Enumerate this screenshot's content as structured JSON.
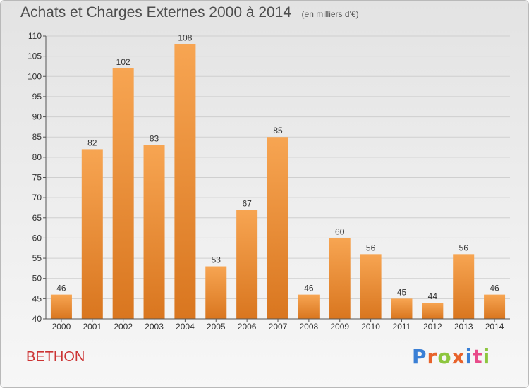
{
  "header": {
    "title": "Achats et Charges Externes 2000 à 2014",
    "subtitle": "(en milliers d'€)"
  },
  "footer": {
    "commune": "BETHON",
    "logo_text": "Proxiti",
    "logo_colors": [
      "#3a7fd5",
      "#e8632b",
      "#8dc63f",
      "#e8632b",
      "#3a7fd5",
      "#e84b8a",
      "#8dc63f"
    ]
  },
  "colors": {
    "bar_top": "#f7a552",
    "bar_bottom": "#d9761f",
    "grid": "#cfcfcf",
    "axis": "#555555",
    "text": "#333333"
  },
  "chart_data": {
    "type": "bar",
    "categories": [
      "2000",
      "2001",
      "2002",
      "2003",
      "2004",
      "2005",
      "2006",
      "2007",
      "2008",
      "2009",
      "2010",
      "2011",
      "2012",
      "2013",
      "2014"
    ],
    "values": [
      46,
      82,
      102,
      83,
      108,
      53,
      67,
      85,
      46,
      60,
      56,
      45,
      44,
      56,
      46
    ],
    "title": "Achats et Charges Externes 2000 à 2014",
    "xlabel": "",
    "ylabel": "",
    "ylim": [
      40,
      110
    ],
    "yticks": [
      40,
      45,
      50,
      55,
      60,
      65,
      70,
      75,
      80,
      85,
      90,
      95,
      100,
      105,
      110
    ],
    "grid": true,
    "data_labels": true
  }
}
